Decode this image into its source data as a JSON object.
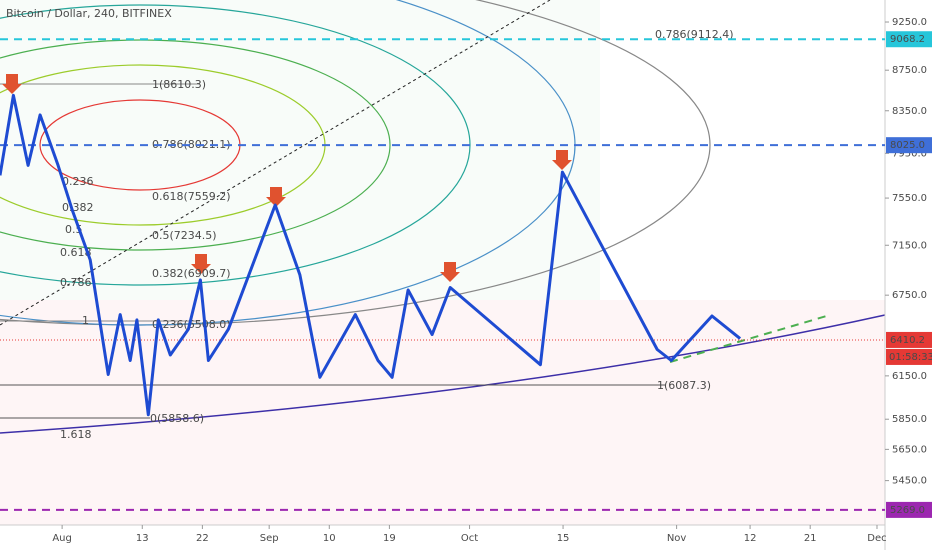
{
  "chart_data": {
    "type": "line",
    "title": "Bitcoin / Dollar, 240, BITFINEX",
    "log_scale": true,
    "xlim": [
      -9.3,
      123.2
    ],
    "xticks": [
      {
        "value": 0,
        "label": "Aug"
      },
      {
        "value": 12,
        "label": "13"
      },
      {
        "value": 21,
        "label": "22"
      },
      {
        "value": 31,
        "label": "Sep"
      },
      {
        "value": 40,
        "label": "10"
      },
      {
        "value": 49,
        "label": "19"
      },
      {
        "value": 61,
        "label": "Oct"
      },
      {
        "value": 75,
        "label": "15"
      },
      {
        "value": 92,
        "label": "Nov"
      },
      {
        "value": 103,
        "label": "12"
      },
      {
        "value": 112,
        "label": "21"
      },
      {
        "value": 122,
        "label": "Dec"
      }
    ],
    "ylim": [
      5178,
      9488
    ],
    "yticks": [
      {
        "value": 9250,
        "label": "9250.0"
      },
      {
        "value": 8750,
        "label": "8750.0"
      },
      {
        "value": 8350,
        "label": "8350.0"
      },
      {
        "value": 7950,
        "label": "7950.0"
      },
      {
        "value": 7550,
        "label": "7550.0"
      },
      {
        "value": 7150,
        "label": "7150.0"
      },
      {
        "value": 6750,
        "label": "6750.0"
      },
      {
        "value": 6150,
        "label": "6150.0"
      },
      {
        "value": 5850,
        "label": "5850.0"
      },
      {
        "value": 5650,
        "label": "5650.0"
      },
      {
        "value": 5450,
        "label": "5450.0"
      }
    ],
    "color": "#1e4bd2",
    "x": [
      -9.3,
      -7.3,
      -5.1,
      -3.3,
      -0.6,
      1.5,
      4.2,
      6.9,
      8.7,
      10.2,
      11.2,
      12.9,
      14.4,
      16.2,
      18.9,
      20.7,
      21.9,
      24.9,
      31.9,
      35.6,
      38.6,
      43.9,
      47.3,
      49.4,
      51.8,
      55.4,
      58.1,
      71.6,
      74.9,
      89.1,
      91.2,
      97.3,
      101.5
    ],
    "values": [
      7750,
      8500,
      7840,
      8310,
      7840,
      7450,
      7030,
      6160,
      6600,
      6260,
      6560,
      5880,
      6560,
      6300,
      6490,
      6870,
      6260,
      6490,
      7490,
      6910,
      6140,
      6600,
      6260,
      6140,
      6790,
      6450,
      6810,
      6230,
      7780,
      6340,
      6260,
      6590,
      6420
    ],
    "levels": [
      {
        "value": 9068.2,
        "label": "9068.2",
        "color": "#26c6da"
      },
      {
        "value": 8025.0,
        "label": "8025.0",
        "color": "#3f6fd8"
      },
      {
        "value": 6410.2,
        "label": "6410.2",
        "color": "#e53935"
      },
      {
        "value": 5269.0,
        "label": "5269.0",
        "color": "#9c27b0"
      }
    ],
    "countdown": "01:58:33",
    "annotations": [
      "0.786(9112.4)",
      "1(8610.3)",
      "0.786(8021.1)",
      "0.236",
      "0.618(7559.2)",
      "0.382",
      "0.5(7234.5)",
      "0.5",
      "0.618",
      "0.382(6909.7)",
      "0.786",
      "0.236(6508.0)",
      "1",
      "0(5858.6)",
      "1.618",
      "1(6087.3)"
    ]
  }
}
